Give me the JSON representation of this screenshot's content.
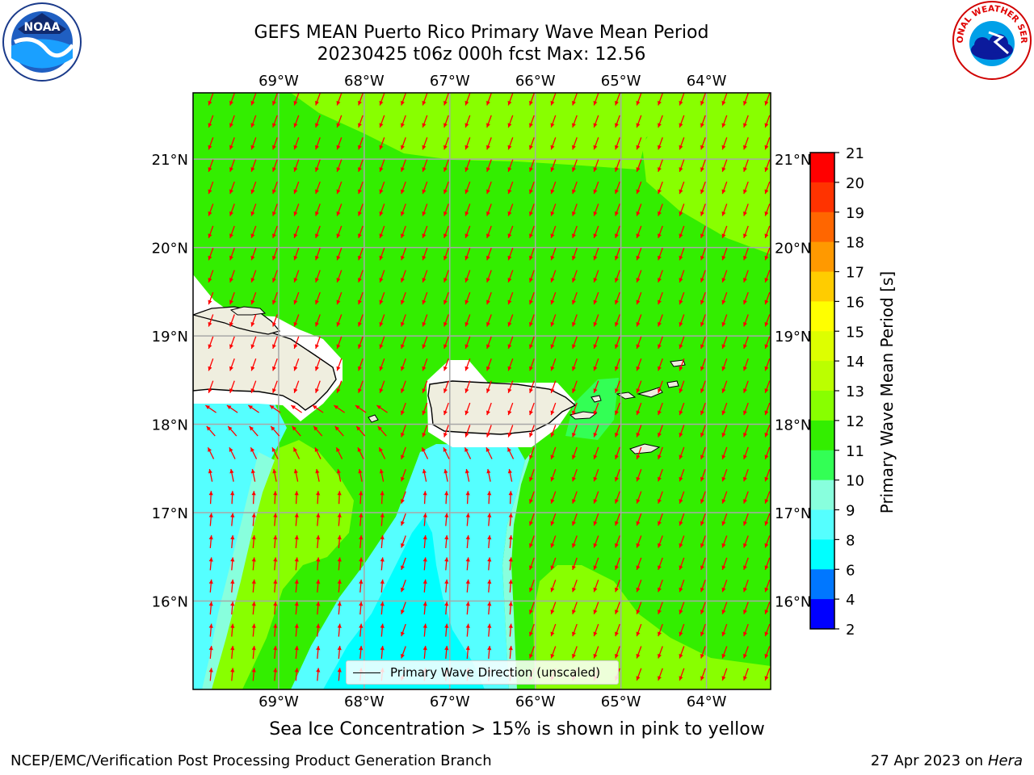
{
  "title_line1": "GEFS MEAN Puerto Rico Primary Wave Mean Period",
  "title_line2": "20230425 t06z 000h fcst   Max: 12.56",
  "logos": {
    "left": "noaa-logo",
    "left_text": "NOAA",
    "right": "nws-logo",
    "right_text": "NATIONAL WEATHER SERVICE"
  },
  "map": {
    "lon_labels": [
      "69°W",
      "68°W",
      "67°W",
      "66°W",
      "65°W",
      "64°W"
    ],
    "lat_labels": [
      "21°N",
      "20°N",
      "19°N",
      "18°N",
      "17°N",
      "16°N"
    ],
    "lon_range": [
      -70.0,
      -63.25
    ],
    "lat_range": [
      15.0,
      21.75
    ],
    "grid": true,
    "arrow_color": "#ff0000",
    "land_color": "#efeedf"
  },
  "legend": {
    "label": "Primary Wave Direction (unscaled)"
  },
  "colorbar": {
    "label": "Primary Wave Mean Period [s]",
    "ticks": [
      "21",
      "20",
      "19",
      "18",
      "17",
      "16",
      "15",
      "14",
      "13",
      "12",
      "11",
      "10",
      "9",
      "8",
      "6",
      "4",
      "2"
    ],
    "colors": [
      "#ff0000",
      "#ff3300",
      "#ff6600",
      "#ff9900",
      "#ffcc00",
      "#ffff00",
      "#ddff00",
      "#bbff00",
      "#88ff00",
      "#33ee00",
      "#33ff55",
      "#88ffdd",
      "#55ffff",
      "#00ffff",
      "#0077ff",
      "#0000ff"
    ]
  },
  "chart_data": {
    "type": "heatmap",
    "title": "GEFS MEAN Puerto Rico Primary Wave Mean Period",
    "max_value": 12.56,
    "units": "s",
    "value_range": [
      2,
      21
    ]
  },
  "note": "Sea Ice Concentration > 15% is shown in pink to yellow",
  "footer_left": "NCEP/EMC/Verification Post Processing Product Generation Branch",
  "footer_date": "27 Apr 2023 on ",
  "footer_host": "Hera"
}
